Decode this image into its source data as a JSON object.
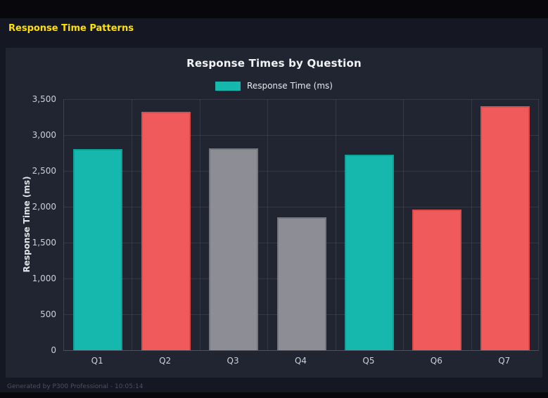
{
  "page": {
    "title": "Response Time Patterns"
  },
  "footer": {
    "text": "Generated by P300 Professional - 10:05:14"
  },
  "colors": {
    "teal": "#16b8ae",
    "red": "#f15a5a",
    "gray": "#8d8d95",
    "accent_yellow": "#ffe100",
    "panel_bg": "#212532",
    "page_bg": "#151722"
  },
  "chart_data": {
    "type": "bar",
    "title": "Response Times by Question",
    "legend_label": "Response Time (ms)",
    "legend_color": "#16b8ae",
    "legend_position": "top",
    "categories": [
      "Q1",
      "Q2",
      "Q3",
      "Q4",
      "Q5",
      "Q6",
      "Q7"
    ],
    "values": [
      2800,
      3320,
      2810,
      1850,
      2730,
      1960,
      3400
    ],
    "bar_colors": [
      "#16b8ae",
      "#f15a5a",
      "#8d8d95",
      "#8d8d95",
      "#16b8ae",
      "#f15a5a",
      "#f15a5a"
    ],
    "bar_border_colors": [
      "#0fa096",
      "#d84c4c",
      "#76767e",
      "#76767e",
      "#0fa096",
      "#d84c4c",
      "#d84c4c"
    ],
    "xlabel": "",
    "ylabel": "Response Time (ms)",
    "ylim": [
      0,
      3500
    ],
    "ytick_step": 500,
    "grid": true
  }
}
